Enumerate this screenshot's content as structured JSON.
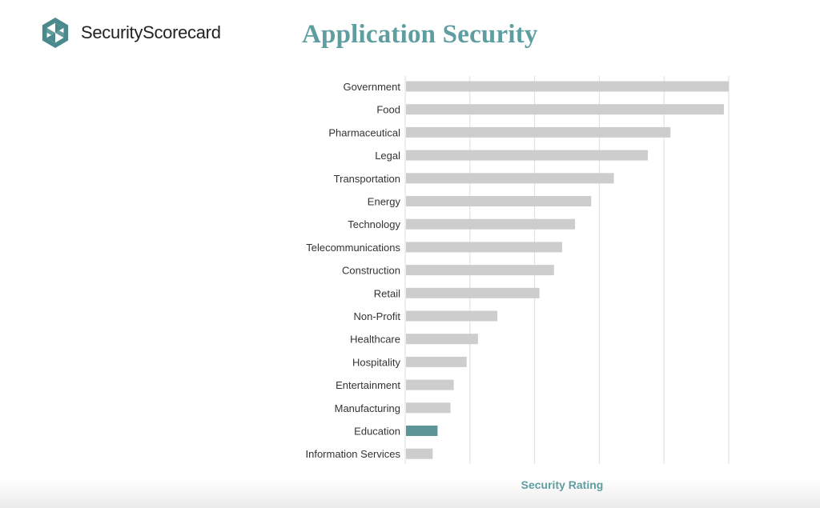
{
  "brand": {
    "name": "SecurityScorecard",
    "icon": "security-scorecard-logo-icon",
    "color": "#4a8a8c"
  },
  "header": {
    "title": "Application Security"
  },
  "colors": {
    "bar_default": "#cdcdcd",
    "bar_highlight": "#5b9597",
    "grid": "#dddddd",
    "title": "#5e9ea0"
  },
  "chart_data": {
    "type": "bar",
    "orientation": "horizontal",
    "title": "Application Security",
    "xlabel": "Security Rating",
    "ylabel": "",
    "xlim": [
      0,
      100
    ],
    "grid": true,
    "categories": [
      "Government",
      "Food",
      "Pharmaceutical",
      "Legal",
      "Transportation",
      "Energy",
      "Technology",
      "Telecommunications",
      "Construction",
      "Retail",
      "Non-Profit",
      "Healthcare",
      "Hospitality",
      "Entertainment",
      "Manufacturing",
      "Education",
      "Information Services"
    ],
    "values": [
      100,
      98.5,
      82,
      75,
      64.5,
      57.5,
      52.5,
      48.5,
      46,
      41.5,
      28.5,
      22.5,
      19,
      15,
      14,
      10,
      8.5
    ],
    "highlight": "Education"
  }
}
